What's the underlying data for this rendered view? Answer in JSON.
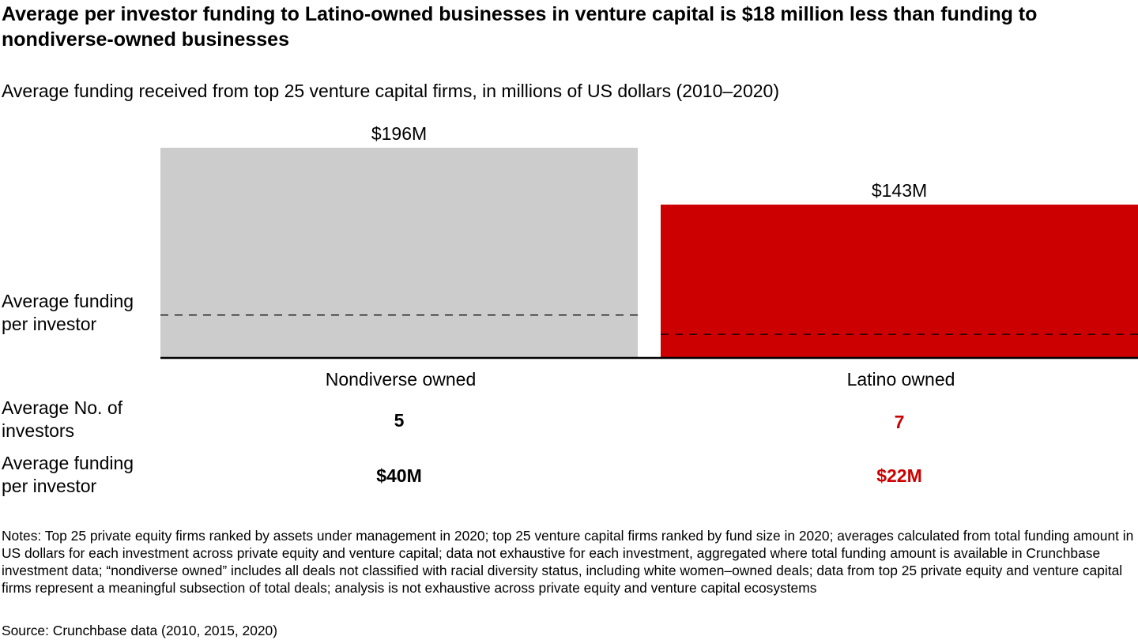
{
  "header": {
    "title": "Average per investor funding to Latino-owned businesses in venture capital is $18 million less than funding to nondiverse-owned businesses",
    "subtitle": "Average funding received from top 25 venture capital firms, in millions of US dollars (2010–2020)"
  },
  "chart_data": {
    "type": "bar",
    "categories": [
      "Nondiverse owned",
      "Latino owned"
    ],
    "values": [
      196,
      143
    ],
    "value_labels": [
      "$196M",
      "$143M"
    ],
    "colors": [
      "#cccccc",
      "#cc0000"
    ],
    "reference_lines": {
      "label": "Average funding per investor",
      "values": [
        40,
        22
      ],
      "style": "dashed"
    },
    "ylim": [
      0,
      196
    ],
    "grid": false
  },
  "row_labels": {
    "investors": "Average No. of investors",
    "funding": "Average funding per investor"
  },
  "stats": {
    "investors": [
      "5",
      "7"
    ],
    "funding": [
      "$40M",
      "$22M"
    ],
    "colors": [
      "#000000",
      "#cc0000"
    ]
  },
  "footer": {
    "notes": "Notes: Top 25 private equity firms ranked by assets under management in 2020; top 25 venture capital firms ranked by fund size in 2020; averages calculated from total funding amount in US dollars for each investment across private equity and venture capital; data not exhaustive for each investment, aggregated where total funding amount is available in Crunchbase investment data; “nondiverse owned” includes all deals not classified with racial diversity status, including white women–owned deals; data from top 25 private equity and venture capital firms represent a meaningful subsection of total deals; analysis is not exhaustive across private equity and venture capital ecosystems",
    "source": "Source: Crunchbase data (2010, 2015, 2020)"
  }
}
